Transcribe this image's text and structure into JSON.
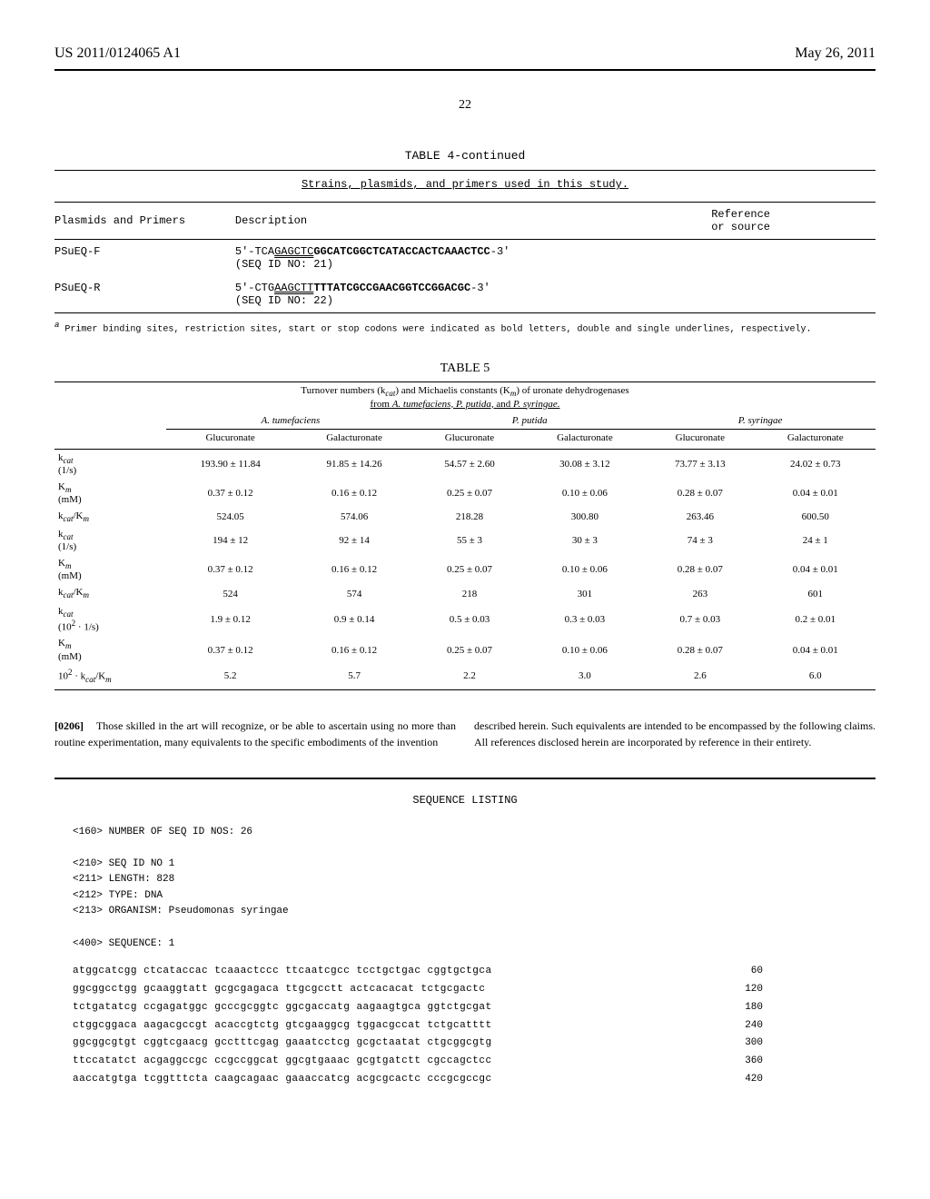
{
  "header": {
    "pub_id": "US 2011/0124065 A1",
    "pub_date": "May 26, 2011"
  },
  "page_number": "22",
  "table4": {
    "title": "TABLE 4-continued",
    "subtitle": "Strains, plasmids, and primers used in this study.",
    "columns": {
      "c1": "Plasmids and Primers",
      "c2": "Description",
      "c3": "Reference\nor source"
    },
    "rows": [
      {
        "name": "PSuEQ-F",
        "desc_pre": "5'-TCA",
        "desc_dbl": "GAGCTC",
        "desc_bold": "GGCATCGGCTCATACCACTCAAACTCC",
        "desc_post": "-3'",
        "seqid": "(SEQ ID NO: 21)",
        "ref": ""
      },
      {
        "name": "PSuEQ-R",
        "desc_pre": "5'-CTG",
        "desc_dbl": "AAGCTT",
        "desc_bold": "TTTATCGCCGAACGGTCCGGACGC",
        "desc_post": "-3'",
        "seqid": "(SEQ ID NO: 22)",
        "ref": ""
      }
    ],
    "footnote_sup": "a",
    "footnote": " Primer binding sites, restriction sites, start or stop codons were indicated as bold letters, double and single underlines, respectively."
  },
  "table5": {
    "title": "TABLE 5",
    "caption_l1": "Turnover numbers (k",
    "caption_l1b": ") and Michaelis constants (K",
    "caption_l1c": ") of uronate dehydrogenases",
    "caption_l2": "from ",
    "caption_l2b": "A. tumefaciens, P. putida, ",
    "caption_l2c": "and ",
    "caption_l2d": "P. syringae.",
    "species": [
      "A. tumefaciens",
      "P. putida",
      "P. syringae"
    ],
    "subheaders": [
      "Glucuronate",
      "Galacturonate",
      "Glucuronate",
      "Galacturonate",
      "Glucuronate",
      "Galacturonate"
    ],
    "rows": [
      {
        "label": "k<sub><i>cat</i></sub>",
        "unit": "(1/s)",
        "vals": [
          "193.90 ± 11.84",
          "91.85 ± 14.26",
          "54.57 ± 2.60",
          "30.08 ± 3.12",
          "73.77 ± 3.13",
          "24.02 ± 0.73"
        ]
      },
      {
        "label": "K<sub><i>m</i></sub>",
        "unit": "(mM)",
        "vals": [
          "0.37 ± 0.12",
          "0.16 ± 0.12",
          "0.25 ± 0.07",
          "0.10 ± 0.06",
          "0.28 ± 0.07",
          "0.04 ± 0.01"
        ]
      },
      {
        "label": "k<sub><i>cat</i></sub>/K<sub><i>m</i></sub>",
        "unit": "",
        "vals": [
          "524.05",
          "574.06",
          "218.28",
          "300.80",
          "263.46",
          "600.50"
        ]
      },
      {
        "label": "k<sub><i>cat</i></sub>",
        "unit": "(1/s)",
        "vals": [
          "194 ± 12",
          "92 ± 14",
          "55 ± 3",
          "30 ± 3",
          "74 ± 3",
          "24 ± 1"
        ]
      },
      {
        "label": "K<sub><i>m</i></sub>",
        "unit": "(mM)",
        "vals": [
          "0.37 ± 0.12",
          "0.16 ± 0.12",
          "0.25 ± 0.07",
          "0.10 ± 0.06",
          "0.28 ± 0.07",
          "0.04 ± 0.01"
        ]
      },
      {
        "label": "k<sub><i>cat</i></sub>/K<sub><i>m</i></sub>",
        "unit": "",
        "vals": [
          "524",
          "574",
          "218",
          "301",
          "263",
          "601"
        ]
      },
      {
        "label": "k<sub><i>cat</i></sub>",
        "unit": "(10<sup>2</sup> · 1/s)",
        "vals": [
          "1.9 ± 0.12",
          "0.9 ± 0.14",
          "0.5 ± 0.03",
          "0.3 ± 0.03",
          "0.7 ± 0.03",
          "0.2 ± 0.01"
        ]
      },
      {
        "label": "K<sub><i>m</i></sub>",
        "unit": "(mM)",
        "vals": [
          "0.37 ± 0.12",
          "0.16 ± 0.12",
          "0.25 ± 0.07",
          "0.10 ± 0.06",
          "0.28 ± 0.07",
          "0.04 ± 0.01"
        ]
      },
      {
        "label": "10<sup>2</sup> · k<sub><i>cat</i></sub>/K<sub><i>m</i></sub>",
        "unit": "",
        "vals": [
          "5.2",
          "5.7",
          "2.2",
          "3.0",
          "2.6",
          "6.0"
        ]
      }
    ]
  },
  "paragraph": {
    "ref": "[0206]",
    "left": "    Those skilled in the art will recognize, or be able to ascertain using no more than routine experimentation, many equivalents to the specific embodiments of the invention",
    "right": "described herein. Such equivalents are intended to be encompassed by the following claims. All references disclosed herein are incorporated by reference in their entirety."
  },
  "seq": {
    "title": "SEQUENCE LISTING",
    "header": "<160> NUMBER OF SEQ ID NOS: 26\n\n<210> SEQ ID NO 1\n<211> LENGTH: 828\n<212> TYPE: DNA\n<213> ORGANISM: Pseudomonas syringae\n\n<400> SEQUENCE: 1",
    "lines": [
      {
        "s": "atggcatcgg ctcataccac tcaaactccc ttcaatcgcc tcctgctgac cggtgctgca",
        "n": "60"
      },
      {
        "s": "ggcggcctgg gcaaggtatt gcgcgagaca ttgcgcctt actcacacat tctgcgactc",
        "n": "120"
      },
      {
        "s": "tctgatatcg ccgagatggc gcccgcggtc ggcgaccatg aagaagtgca ggtctgcgat",
        "n": "180"
      },
      {
        "s": "ctggcggaca aagacgccgt acaccgtctg gtcgaaggcg tggacgccat tctgcatttt",
        "n": "240"
      },
      {
        "s": "ggcggcgtgt cggtcgaacg gcctttcgag gaaatcctcg gcgctaatat ctgcggcgtg",
        "n": "300"
      },
      {
        "s": "ttccatatct acgaggccgc ccgccggcat ggcgtgaaac gcgtgatctt cgccagctcc",
        "n": "360"
      },
      {
        "s": "aaccatgtga tcggtttcta caagcagaac gaaaccatcg acgcgcactc cccgcgccgc",
        "n": "420"
      }
    ]
  }
}
